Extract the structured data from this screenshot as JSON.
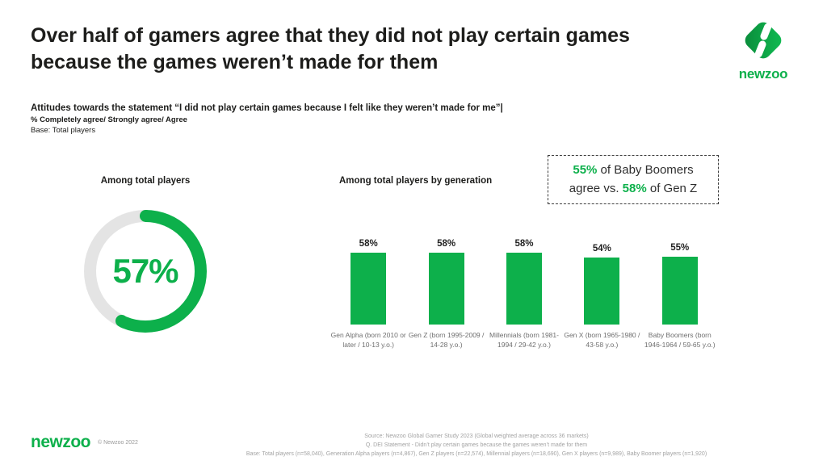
{
  "header": {
    "title": "Over half of gamers agree that they did not play certain games because the games weren’t made for them",
    "logo_text": "newzoo"
  },
  "subtitle": {
    "line1": "Attitudes towards the statement “I did not play certain games because I felt like they weren’t made for me”|",
    "line2": "% Completely agree/ Strongly agree/ Agree",
    "line3": "Base: Total players"
  },
  "donut_section": {
    "label": "Among total players",
    "value_label": "57%"
  },
  "bar_section": {
    "label": "Among total players by generation"
  },
  "callout": {
    "pct1": "55%",
    "text1": " of Baby Boomers",
    "text2": "agree vs. ",
    "pct2": "58%",
    "text3": " of Gen Z"
  },
  "chart_data": [
    {
      "type": "pie",
      "subtype": "donut",
      "title": "Among total players",
      "labels": [
        "Agree",
        "Remainder"
      ],
      "values": [
        57,
        43
      ],
      "center_label": "57%",
      "start_angle": "top, clockwise",
      "colors": [
        "#0db04b",
        "#e4e4e4"
      ]
    },
    {
      "type": "bar",
      "title": "Among total players by generation",
      "categories": [
        "Gen Alpha (born 2010 or later / 10-13 y.o.)",
        "Gen Z (born 1995-2009 / 14-28 y.o.)",
        "Millennials (born 1981-1994 / 29-42 y.o.)",
        "Gen X (born 1965-1980 / 43-58 y.o.)",
        "Baby Boomers (born 1946-1964 / 59-65 y.o.)"
      ],
      "values": [
        58,
        58,
        58,
        54,
        55
      ],
      "value_labels": [
        "58%",
        "58%",
        "58%",
        "54%",
        "55%"
      ],
      "value_suffix": "%",
      "ylim": [
        0,
        65
      ],
      "grid": false,
      "data_labels": "above bars",
      "annotation": "55% of Baby Boomers agree vs. 58% of Gen Z"
    }
  ],
  "footer": {
    "logo_text": "newzoo",
    "copyright": "© Newzoo 2022",
    "source_line1": "Source: Newzoo Global Gamer Study 2023 (Global weighted average across 36 markets)",
    "source_line2": "Q. DEI Statement - Didn’t play certain games because the games weren’t made for them",
    "source_line3": "Base: Total players (n=58,040), Generation Alpha players (n=4,867), Gen Z players (n=22,574), Millennial players (n=18,690), Gen X players (n=9,989), Baby Boomer players (n=1,920)"
  },
  "colors": {
    "green": "#0db04b",
    "track_gray": "#e4e4e4",
    "text_dark": "#1d1d1b",
    "label_gray": "#6f6f6f",
    "logo_gradient_start": "#0a8a3a",
    "logo_gradient_end": "#10bd52"
  }
}
